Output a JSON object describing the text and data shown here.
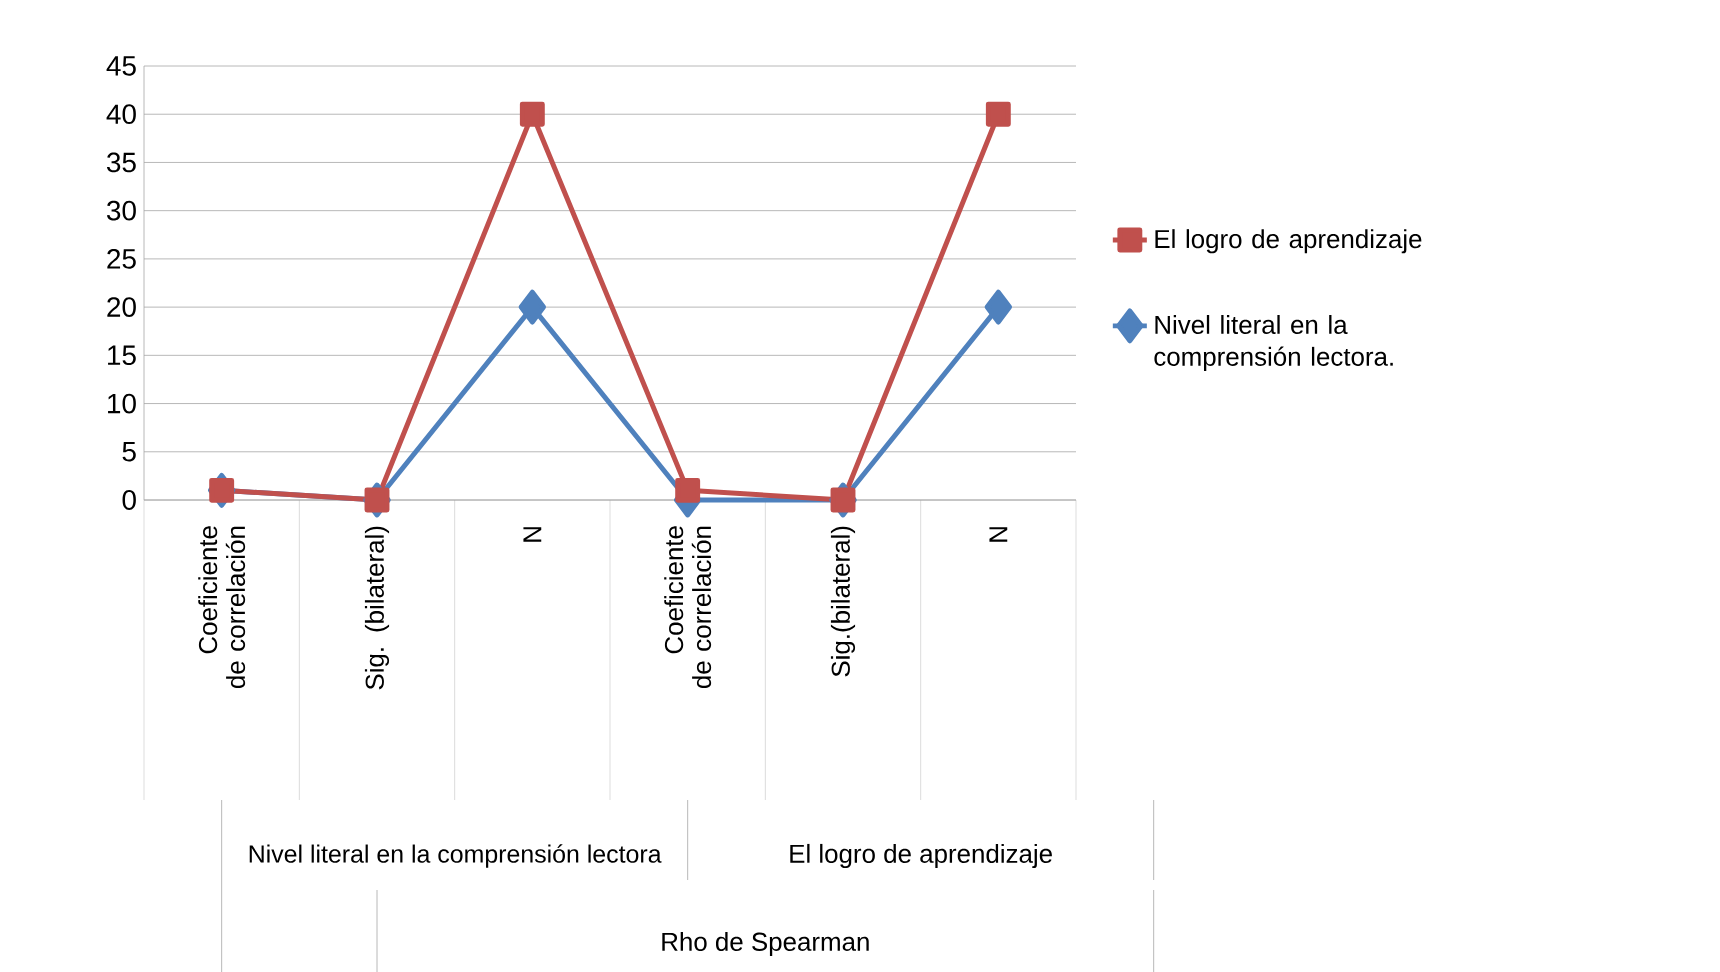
{
  "chart_data": {
    "type": "line",
    "categories": [
      "Coeficiente de correlación",
      "Sig. (bilateral)",
      "N",
      "Coeficiente de correlación",
      "Sig.(bilateral)",
      "N"
    ],
    "series": [
      {
        "name": "El logro de aprendizaje",
        "color": "#c0504d",
        "marker": "square",
        "values": [
          1,
          0,
          40,
          1,
          0,
          40
        ]
      },
      {
        "name": "Nivel literal en la comprensión lectora.",
        "color": "#4f81bd",
        "marker": "diamond",
        "values": [
          1,
          0,
          20,
          0,
          0,
          20
        ]
      }
    ],
    "annotations": [
      "Nivel literal en la comprensión lectora",
      "El logro de aprendizaje",
      "Rho de Spearman"
    ],
    "ylim": [
      0,
      45
    ],
    "yticks": [
      0,
      5,
      10,
      15,
      20,
      25,
      30,
      35,
      40,
      45
    ],
    "grid": "y",
    "legend": "right",
    "line_style": "solid"
  }
}
